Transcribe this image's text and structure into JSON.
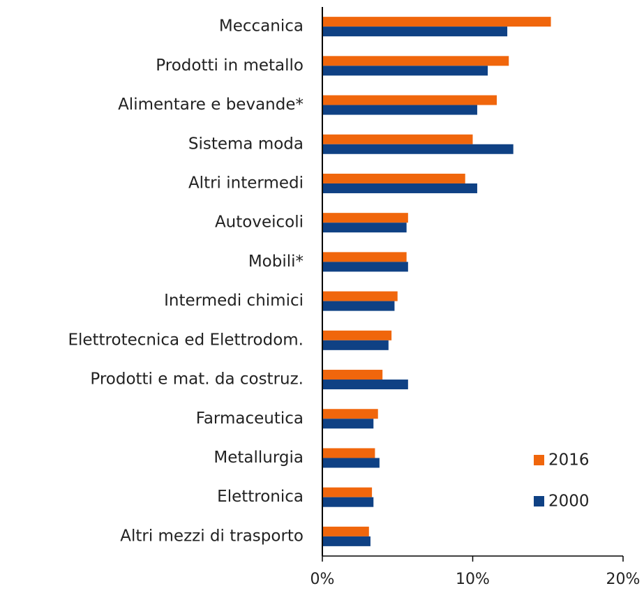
{
  "chart_data": {
    "type": "barh",
    "categories": [
      "Meccanica",
      "Prodotti in metallo",
      "Alimentare e bevande*",
      "Sistema moda",
      "Altri intermedi",
      "Autoveicoli",
      "Mobili*",
      "Intermedi chimici",
      "Elettrotecnica ed Elettrodom.",
      "Prodotti e mat. da costruz.",
      "Farmaceutica",
      "Metallurgia",
      "Elettronica",
      "Altri mezzi di trasporto"
    ],
    "series": [
      {
        "name": "2016",
        "color": "#f0660c",
        "values": [
          15.2,
          12.4,
          11.6,
          10.0,
          9.5,
          5.7,
          5.6,
          5.0,
          4.6,
          4.0,
          3.7,
          3.5,
          3.3,
          3.1
        ]
      },
      {
        "name": "2000",
        "color": "#0f4184",
        "values": [
          12.3,
          11.0,
          10.3,
          12.7,
          10.3,
          5.6,
          5.7,
          4.8,
          4.4,
          5.7,
          3.4,
          3.8,
          3.4,
          3.2
        ]
      }
    ],
    "xlim": [
      0,
      20
    ],
    "xticks": [
      {
        "value": 0,
        "label": "0%"
      },
      {
        "value": 10,
        "label": "10%"
      },
      {
        "value": 20,
        "label": "20%"
      }
    ],
    "legend": "lower right"
  }
}
